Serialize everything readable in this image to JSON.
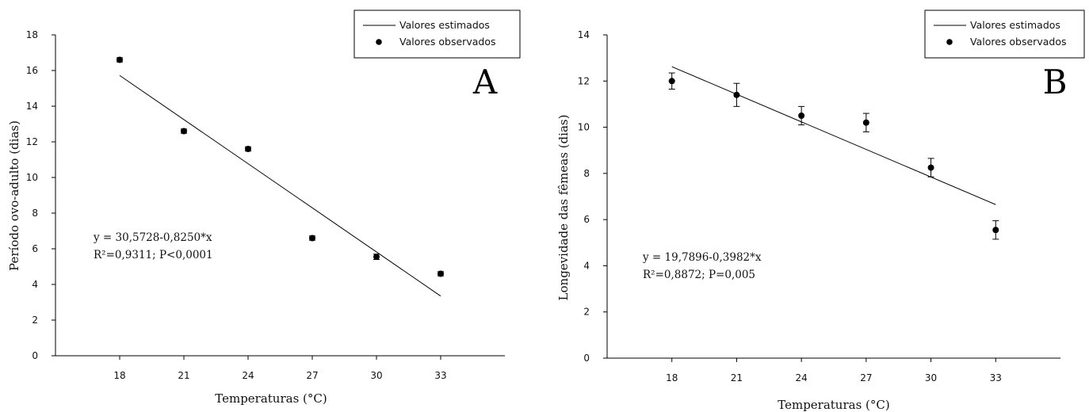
{
  "chart_data": [
    {
      "type": "scatter",
      "panel_label": "A",
      "xlabel": "Temperaturas (°C)",
      "ylabel": "Período ovo-adulto (dias)",
      "x": [
        18,
        21,
        24,
        27,
        30,
        33
      ],
      "xlim": [
        15,
        36
      ],
      "ylim": [
        0,
        18
      ],
      "yticks": [
        0,
        2,
        4,
        6,
        8,
        10,
        12,
        14,
        16,
        18
      ],
      "series": [
        {
          "name": "Valores observados",
          "kind": "points",
          "values": [
            16.6,
            12.6,
            11.6,
            6.6,
            5.55,
            4.6
          ],
          "errors": [
            0.12,
            0.12,
            0.12,
            0.12,
            0.15,
            0.12
          ]
        },
        {
          "name": "Valores estimados",
          "kind": "line",
          "intercept": 30.5728,
          "slope": -0.825
        }
      ],
      "equation": "y = 30,5728-0,8250*x",
      "stats": "R²=0,9311; P<0,0001",
      "legend": [
        "Valores estimados",
        "Valores observados"
      ],
      "legend_position": "top-right",
      "grid": false
    },
    {
      "type": "scatter",
      "panel_label": "B",
      "xlabel": "Temperaturas (°C)",
      "ylabel": "Longevidade das fêmeas (dias)",
      "x": [
        18,
        21,
        24,
        27,
        30,
        33
      ],
      "xlim": [
        15,
        36
      ],
      "ylim": [
        0,
        14
      ],
      "yticks": [
        0,
        2,
        4,
        6,
        8,
        10,
        12,
        14
      ],
      "series": [
        {
          "name": "Valores observados",
          "kind": "points",
          "values": [
            12.0,
            11.4,
            10.5,
            10.2,
            8.25,
            5.55
          ],
          "errors": [
            0.35,
            0.5,
            0.4,
            0.4,
            0.4,
            0.4
          ]
        },
        {
          "name": "Valores estimados",
          "kind": "line",
          "intercept": 19.7896,
          "slope": -0.3982
        }
      ],
      "equation": "y = 19,7896-0,3982*x",
      "stats": "R²=0,8872; P=0,005",
      "legend": [
        "Valores estimados",
        "Valores observados"
      ],
      "legend_position": "top-right",
      "grid": false
    }
  ]
}
